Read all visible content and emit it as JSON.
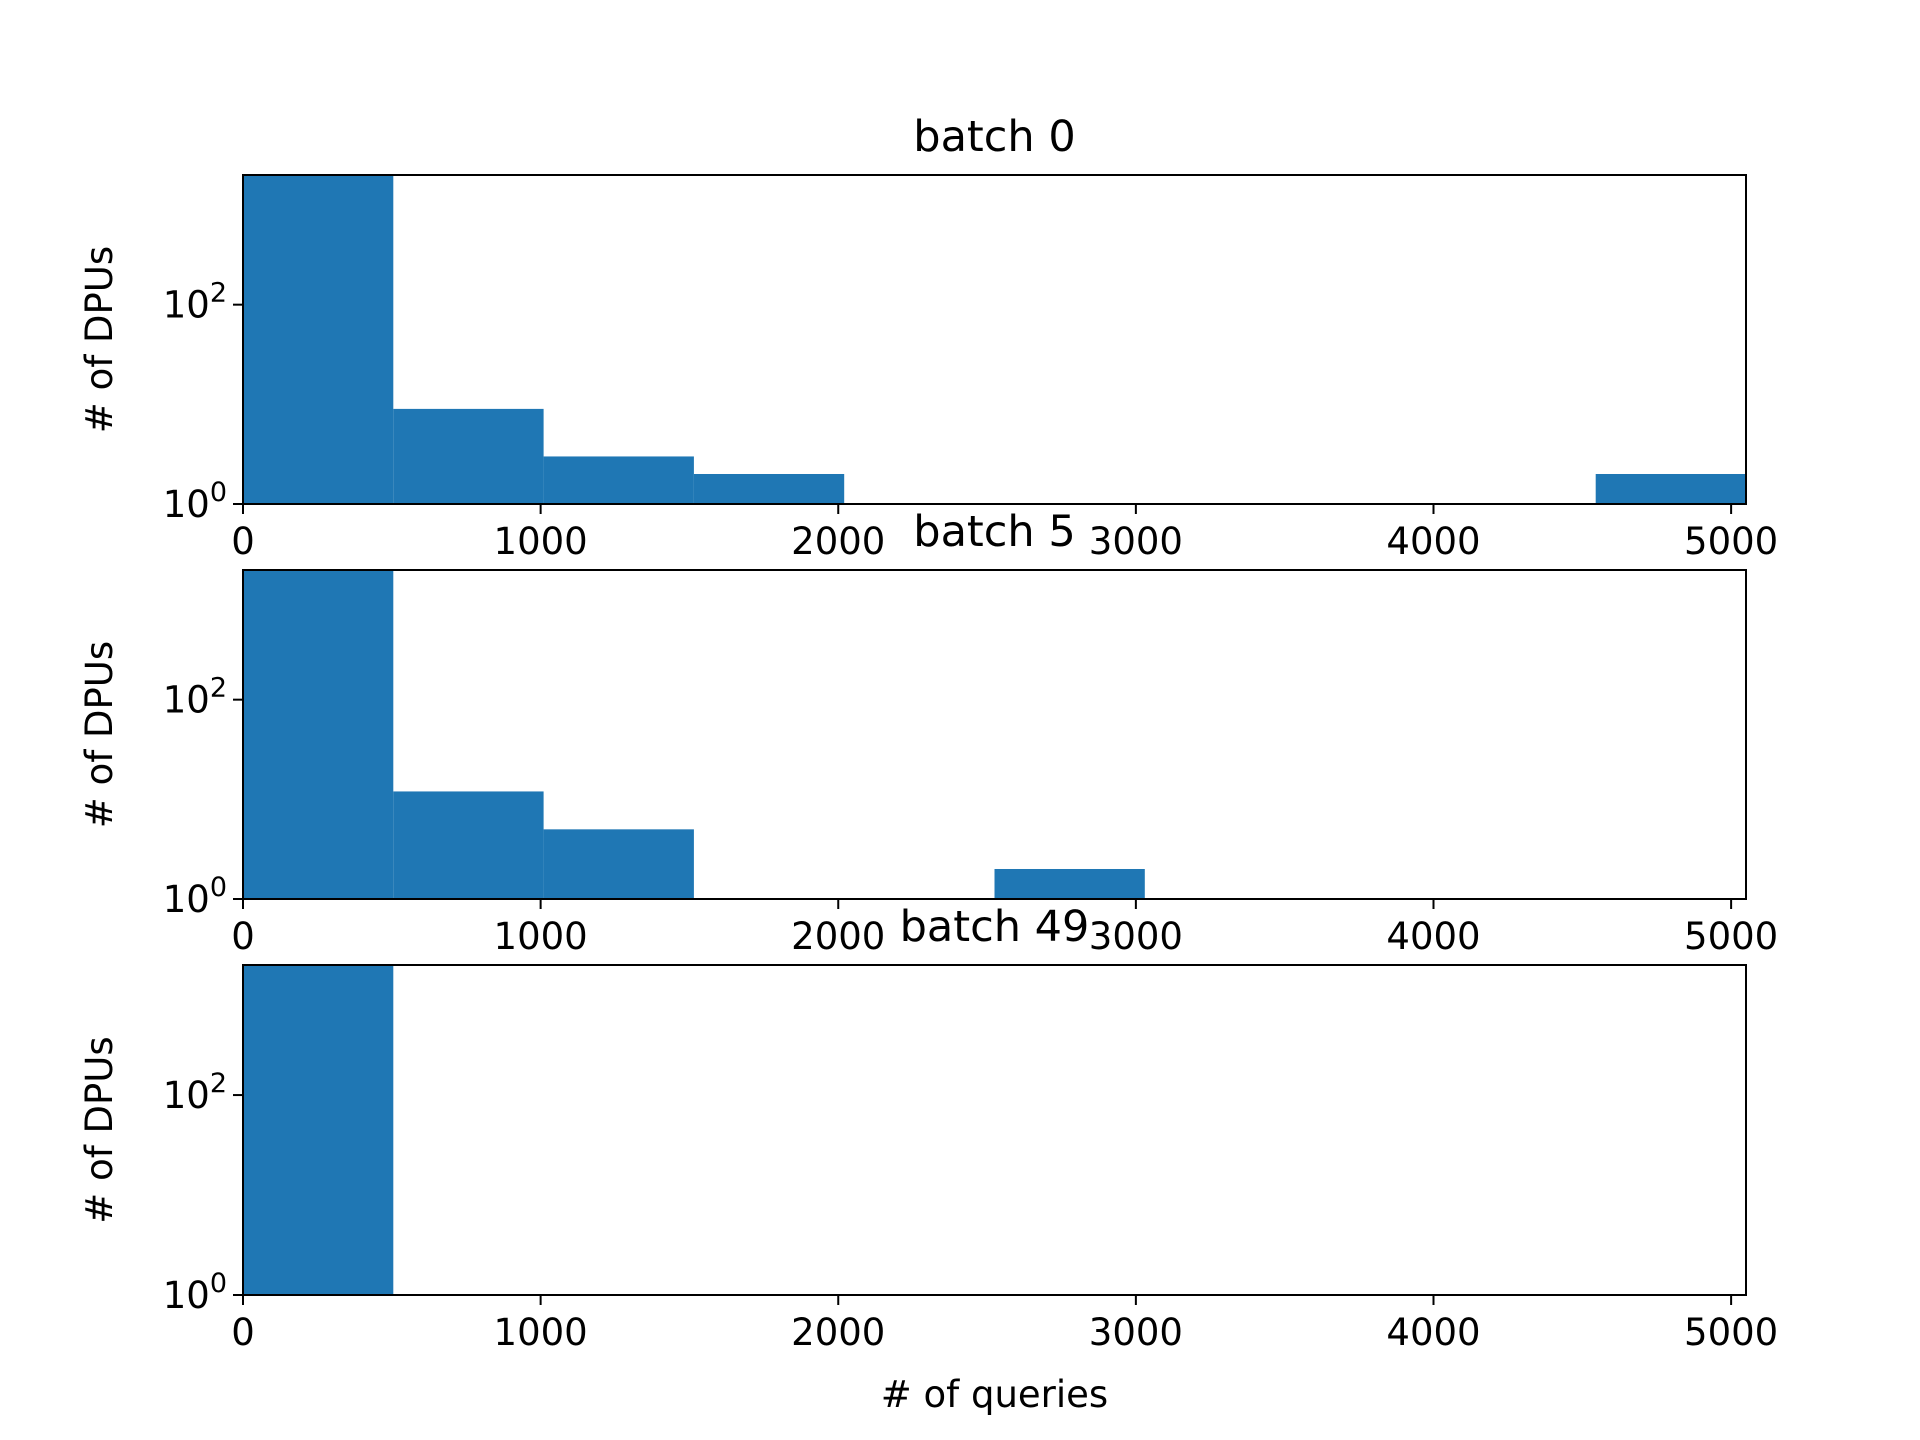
{
  "colors": {
    "bar": "#1f77b4",
    "axis": "#000000",
    "background": "#ffffff"
  },
  "chart_data": [
    {
      "type": "bar",
      "title": "batch 0",
      "ylabel": "# of DPUs",
      "xlabel": "",
      "yscale": "log",
      "xlim": [
        0,
        5050
      ],
      "ylim": [
        1,
        2000
      ],
      "xticks": [
        "0",
        "1000",
        "2000",
        "3000",
        "4000",
        "5000"
      ],
      "yticks": [
        {
          "base": "10",
          "exp": "0"
        },
        {
          "base": "10",
          "exp": "2"
        }
      ],
      "bins": [
        {
          "x0": 0,
          "x1": 505,
          "count": 2500
        },
        {
          "x0": 505,
          "x1": 1010,
          "count": 9
        },
        {
          "x0": 1010,
          "x1": 1515,
          "count": 3
        },
        {
          "x0": 1515,
          "x1": 2020,
          "count": 2
        },
        {
          "x0": 4545,
          "x1": 5050,
          "count": 2
        }
      ]
    },
    {
      "type": "bar",
      "title": "batch 5",
      "ylabel": "# of DPUs",
      "xlabel": "",
      "yscale": "log",
      "xlim": [
        0,
        5050
      ],
      "ylim": [
        1,
        2000
      ],
      "xticks": [
        "0",
        "1000",
        "2000",
        "3000",
        "4000",
        "5000"
      ],
      "yticks": [
        {
          "base": "10",
          "exp": "0"
        },
        {
          "base": "10",
          "exp": "2"
        }
      ],
      "bins": [
        {
          "x0": 0,
          "x1": 505,
          "count": 2500
        },
        {
          "x0": 505,
          "x1": 1010,
          "count": 12
        },
        {
          "x0": 1010,
          "x1": 1515,
          "count": 5
        },
        {
          "x0": 2525,
          "x1": 3030,
          "count": 2
        }
      ]
    },
    {
      "type": "bar",
      "title": "batch 49",
      "ylabel": "# of DPUs",
      "xlabel": "# of queries",
      "yscale": "log",
      "xlim": [
        0,
        5050
      ],
      "ylim": [
        1,
        2000
      ],
      "xticks": [
        "0",
        "1000",
        "2000",
        "3000",
        "4000",
        "5000"
      ],
      "yticks": [
        {
          "base": "10",
          "exp": "0"
        },
        {
          "base": "10",
          "exp": "2"
        }
      ],
      "bins": [
        {
          "x0": 0,
          "x1": 505,
          "count": 2500
        }
      ]
    }
  ]
}
